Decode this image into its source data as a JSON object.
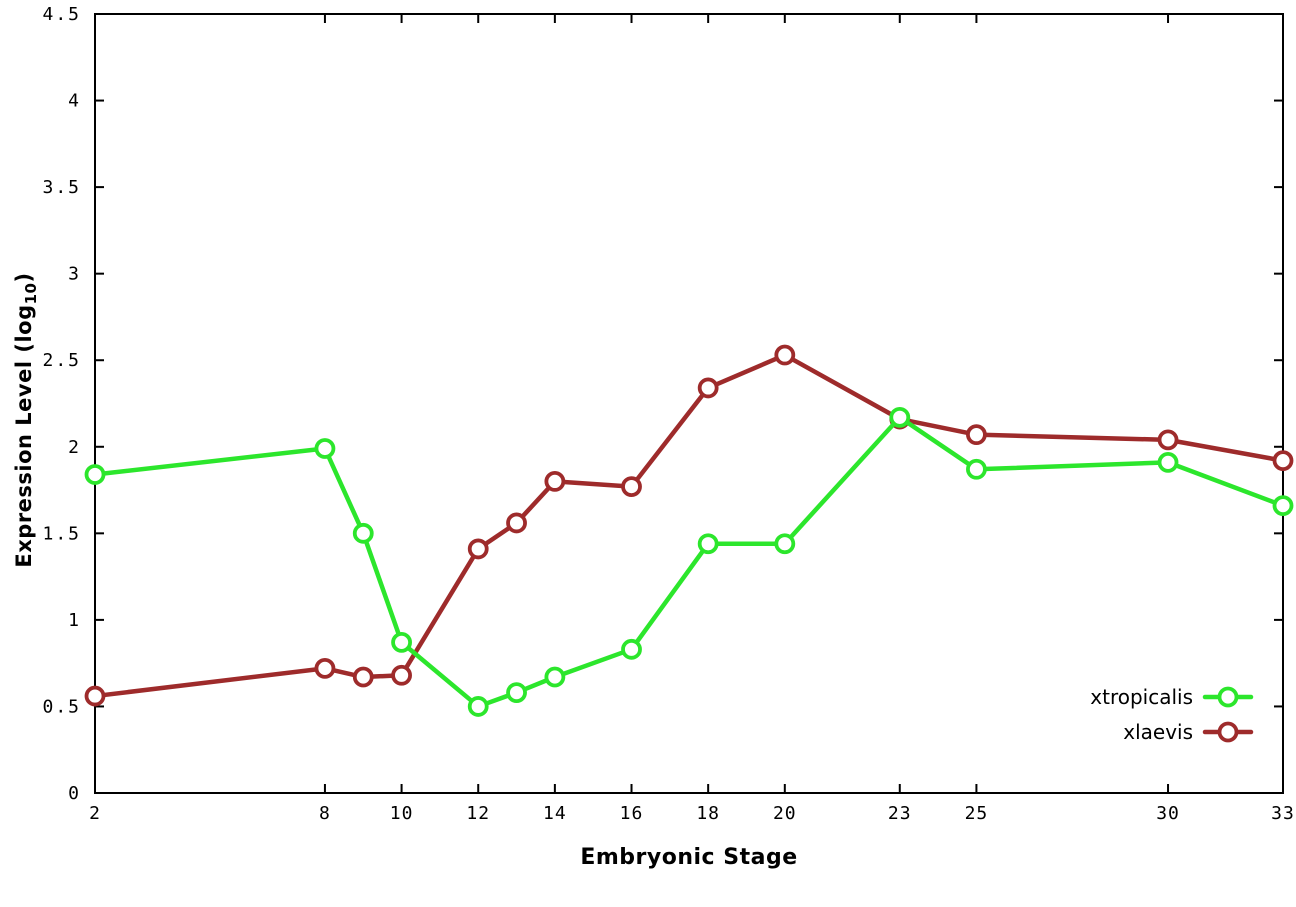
{
  "chart_data": {
    "type": "line",
    "title": "",
    "xlabel": "Embryonic Stage",
    "ylabel": "Expression Level (log10)",
    "ylabel_parts": {
      "main": "Expression Level (log",
      "sub": "10",
      "suffix": ")"
    },
    "x": [
      2,
      8,
      9,
      10,
      12,
      13,
      14,
      16,
      18,
      20,
      23,
      25,
      30,
      33
    ],
    "series": [
      {
        "name": "xtropicalis",
        "color": "#2ce62c",
        "values": [
          1.84,
          1.99,
          1.5,
          0.87,
          0.5,
          0.58,
          0.67,
          0.83,
          1.44,
          1.44,
          2.17,
          1.87,
          1.91,
          1.66
        ]
      },
      {
        "name": "xlaevis",
        "color": "#9e2b2b",
        "values": [
          0.56,
          0.72,
          0.67,
          0.68,
          1.41,
          1.56,
          1.8,
          1.77,
          2.34,
          2.53,
          2.16,
          2.07,
          2.04,
          1.92
        ]
      }
    ],
    "xlim": [
      2,
      33
    ],
    "ylim": [
      0,
      4.5
    ],
    "xticks": [
      2,
      8,
      10,
      12,
      14,
      16,
      18,
      20,
      23,
      25,
      30,
      33
    ],
    "xtick_labels": [
      "2",
      "8",
      "10",
      "12",
      "14",
      "16",
      "18",
      "20",
      "23",
      "25",
      "30",
      "33"
    ],
    "yticks": [
      0,
      0.5,
      1,
      1.5,
      2,
      2.5,
      3,
      3.5,
      4,
      4.5
    ],
    "ytick_labels": [
      "0",
      "0.5",
      "1",
      "1.5",
      "2",
      "2.5",
      "3",
      "3.5",
      "4",
      "4.5"
    ],
    "grid": false,
    "legend_position": "inside-bottom-right",
    "background_color": "#ffffff",
    "axis_color": "#000000",
    "marker": "open-circle"
  }
}
